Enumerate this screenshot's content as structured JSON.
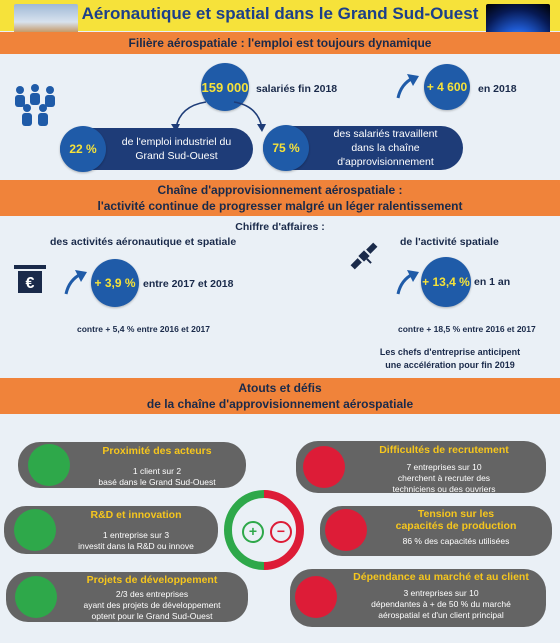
{
  "header": {
    "title": "Aéronautique et spatial dans le Grand Sud-Ouest"
  },
  "section1": {
    "title": "Filière aérospatiale : l'emploi est toujours dynamique",
    "employees_value": "159 000",
    "employees_label": "salariés fin 2018",
    "growth_value": "+ 4 600",
    "growth_label": "en 2018",
    "pct1_value": "22 %",
    "pct1_label_line1": "de l'emploi industriel du",
    "pct1_label_line2": "Grand Sud-Ouest",
    "pct2_value": "75 %",
    "pct2_label_line1": "des salariés travaillent",
    "pct2_label_line2": "dans la chaîne",
    "pct2_label_line3": "d'approvisionnement"
  },
  "section2": {
    "title_line1": "Chaîne d'approvisionnement aérospatiale :",
    "title_line2": "l'activité continue de progresser malgré un léger ralentissement",
    "ca_label": "Chiffre d'affaires :",
    "left_label": "des activités aéronautique et spatiale",
    "left_value": "+ 3,9 %",
    "left_period": "entre 2017 et 2018",
    "left_note": "contre + 5,4 % entre 2016 et 2017",
    "right_label": "de l'activité spatiale",
    "right_value": "+ 13,4 %",
    "right_period": "en 1 an",
    "right_note": "contre + 18,5 % entre 2016 et 2017",
    "outlook_line1": "Les chefs d'entreprise anticipent",
    "outlook_line2": "une accélération pour fin 2019"
  },
  "section3": {
    "title_line1": "Atouts et défis",
    "title_line2": "de la chaîne d'approvisionnement aérospatiale",
    "center_plus": "+",
    "center_minus": "−",
    "strengths": [
      {
        "title": "Proximité des acteurs",
        "line1": "1 client sur 2",
        "line2": "basé dans le Grand Sud-Ouest",
        "line3": ""
      },
      {
        "title": "R&D et innovation",
        "line1": "1 entreprise sur 3",
        "line2": "investit dans la R&D ou innove",
        "line3": ""
      },
      {
        "title": "Projets de développement",
        "line1": "2/3 des entreprises",
        "line2": "ayant des projets de développement",
        "line3": "optent pour le Grand Sud-Ouest"
      }
    ],
    "challenges": [
      {
        "title": "Difficultés de recrutement",
        "line1": "7 entreprises sur 10",
        "line2": "cherchent à recruter des",
        "line3": "techniciens ou des ouvriers"
      },
      {
        "title": "Tension sur les",
        "title2": "capacités de production",
        "line1": "86 % des capacités utilisées",
        "line2": "",
        "line3": ""
      },
      {
        "title": "Dépendance au marché et au client",
        "line1": "3 entreprises sur 10",
        "line2": "dépendantes  à + de 50 % du marché",
        "line3": "aérospatial et d'un client principal"
      }
    ]
  },
  "colors": {
    "yellow": "#f6e23a",
    "orange": "#f0833a",
    "navy": "#1e3c78",
    "blue": "#1f5ba8",
    "green": "#2ea84a",
    "red": "#dd1c37",
    "grey": "#646464"
  }
}
